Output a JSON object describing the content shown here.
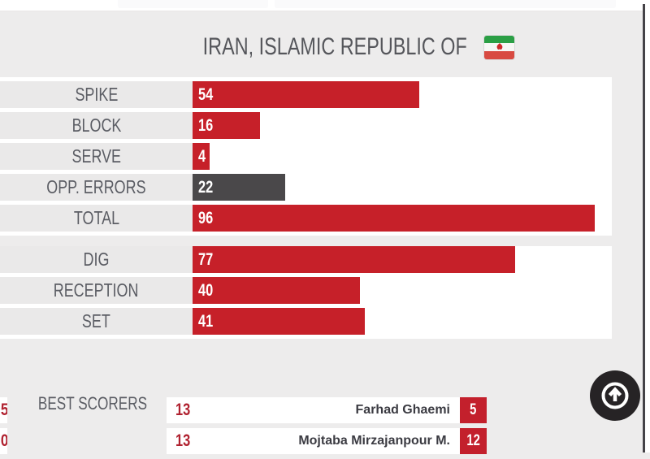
{
  "header": {
    "title": "IRAN, ISLAMIC REPUBLIC OF",
    "flag": {
      "name": "iran-flag",
      "green": "#2b9f45",
      "white": "#f7f7f5",
      "red": "#d84a41",
      "emblem_red": "#cf2b2b"
    }
  },
  "chart_data": {
    "type": "bar",
    "orientation": "horizontal",
    "title": "IRAN, ISLAMIC REPUBLIC OF",
    "xlabel": "",
    "ylabel": "",
    "xlim": [
      0,
      100
    ],
    "grid": false,
    "legend": "none",
    "bar_color_default": "#c62029",
    "bar_color_opp_errors": "#4a484a",
    "groups": [
      {
        "name": "scoring",
        "rows": [
          {
            "label": "SPIKE",
            "value": 54,
            "color": "#c62029"
          },
          {
            "label": "BLOCK",
            "value": 16,
            "color": "#c62029"
          },
          {
            "label": "SERVE",
            "value": 4,
            "color": "#c62029"
          },
          {
            "label": "OPP. ERRORS",
            "value": 22,
            "color": "#4a484a"
          },
          {
            "label": "TOTAL",
            "value": 96,
            "color": "#c62029"
          }
        ]
      },
      {
        "name": "skills",
        "rows": [
          {
            "label": "DIG",
            "value": 77,
            "color": "#c62029"
          },
          {
            "label": "RECEPTION",
            "value": 40,
            "color": "#c62029"
          },
          {
            "label": "SET",
            "value": 41,
            "color": "#c62029"
          }
        ]
      }
    ]
  },
  "best_scorers": {
    "label": "BEST SCORERS",
    "rows": [
      {
        "number": "13",
        "name": "Farhad Ghaemi",
        "score": "5"
      },
      {
        "number": "13",
        "name": "Mojtaba Mirzajanpour M.",
        "score": "12"
      }
    ],
    "left_edge_partial_scores": [
      "5",
      "0"
    ]
  },
  "scroll_top_button": {
    "icon": "arrow-up-circle-icon"
  },
  "colors": {
    "page_bg": "#edecec",
    "row_label_bg": "#eae9e9",
    "track_bg": "#ffffff",
    "label_text": "#5b5d64",
    "accent_red": "#c62029",
    "dark_gray_bar": "#4a484a",
    "button_bg": "#262325"
  }
}
